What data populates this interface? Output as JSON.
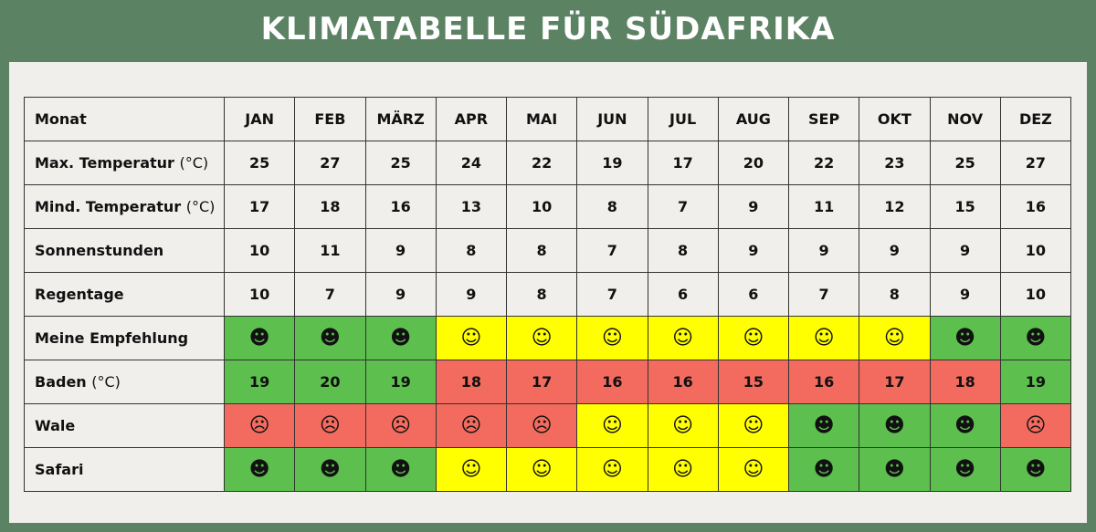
{
  "title": "KLIMATABELLE FÜR SÜDAFRIKA",
  "table": {
    "header": {
      "label": "Monat",
      "cells": [
        "JAN",
        "FEB",
        "MÄRZ",
        "APR",
        "MAI",
        "JUN",
        "JUL",
        "AUG",
        "SEP",
        "OKT",
        "NOV",
        "DEZ"
      ]
    },
    "rows": [
      {
        "label": "Max. Temperatur",
        "unit": "(°C)",
        "cells": [
          25,
          27,
          25,
          24,
          22,
          19,
          17,
          20,
          22,
          23,
          25,
          27
        ]
      },
      {
        "label": "Mind. Temperatur",
        "unit": "(°C)",
        "cells": [
          17,
          18,
          16,
          13,
          10,
          8,
          7,
          9,
          11,
          12,
          15,
          16
        ]
      },
      {
        "label": "Sonnenstunden",
        "cells": [
          10,
          11,
          9,
          8,
          8,
          7,
          8,
          9,
          9,
          9,
          9,
          10
        ]
      },
      {
        "label": "Regentage",
        "cells": [
          10,
          7,
          9,
          9,
          8,
          7,
          6,
          6,
          7,
          8,
          9,
          10
        ]
      },
      {
        "label": "Meine Empfehlung",
        "cells": [
          "☻",
          "☻",
          "☻",
          "☺",
          "☺",
          "☺",
          "☺",
          "☺",
          "☺",
          "☺",
          "☻",
          "☻"
        ],
        "colors": [
          "#5cbf4e",
          "#5cbf4e",
          "#5cbf4e",
          "#ffff00",
          "#ffff00",
          "#ffff00",
          "#ffff00",
          "#ffff00",
          "#ffff00",
          "#ffff00",
          "#5cbf4e",
          "#5cbf4e"
        ]
      },
      {
        "label": "Baden",
        "unit": "(°C)",
        "cells": [
          19,
          20,
          19,
          18,
          17,
          16,
          16,
          15,
          16,
          17,
          18,
          19
        ],
        "colors": [
          "#5cbf4e",
          "#5cbf4e",
          "#5cbf4e",
          "#f26b5e",
          "#f26b5e",
          "#f26b5e",
          "#f26b5e",
          "#f26b5e",
          "#f26b5e",
          "#f26b5e",
          "#f26b5e",
          "#5cbf4e"
        ]
      },
      {
        "label": "Wale",
        "cells": [
          "☹",
          "☹",
          "☹",
          "☹",
          "☹",
          "☺",
          "☺",
          "☺",
          "☻",
          "☻",
          "☻",
          "☹"
        ],
        "colors": [
          "#f26b5e",
          "#f26b5e",
          "#f26b5e",
          "#f26b5e",
          "#f26b5e",
          "#ffff00",
          "#ffff00",
          "#ffff00",
          "#5cbf4e",
          "#5cbf4e",
          "#5cbf4e",
          "#f26b5e"
        ]
      },
      {
        "label": "Safari",
        "cells": [
          "☻",
          "☻",
          "☻",
          "☺",
          "☺",
          "☺",
          "☺",
          "☺",
          "☻",
          "☻",
          "☻",
          "☻"
        ],
        "colors": [
          "#5cbf4e",
          "#5cbf4e",
          "#5cbf4e",
          "#ffff00",
          "#ffff00",
          "#ffff00",
          "#ffff00",
          "#ffff00",
          "#5cbf4e",
          "#5cbf4e",
          "#5cbf4e",
          "#5cbf4e"
        ]
      }
    ]
  }
}
